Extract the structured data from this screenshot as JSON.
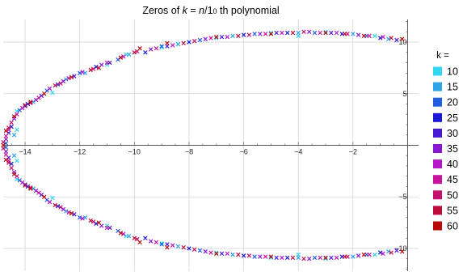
{
  "chart_data": {
    "type": "scatter",
    "marker": "x",
    "title": {
      "prefix": "Zeros of ",
      "var": "k",
      "mid": " = ",
      "num": "n",
      "slash": "/1",
      "sub": "0",
      "suffix": " th polynomial"
    },
    "grid": true,
    "xlim": [
      -14.8,
      0.4
    ],
    "ylim": [
      -12.2,
      12.2
    ],
    "x_ticks": [
      -14,
      -12,
      -10,
      -8,
      -6,
      -4,
      -2
    ],
    "x_tick_labels": [
      "−14",
      "−12",
      "−10",
      "−8",
      "−6",
      "−4",
      "−2"
    ],
    "y_ticks": [
      -10,
      -5,
      5,
      10
    ],
    "y_tick_labels": [
      "−10",
      "−5",
      "5",
      "10"
    ],
    "legend": {
      "title": "k =",
      "placement": "right",
      "entries": [
        {
          "label": "10",
          "color": "#33d6f0"
        },
        {
          "label": "15",
          "color": "#2fa3e8"
        },
        {
          "label": "20",
          "color": "#1f5fe0"
        },
        {
          "label": "25",
          "color": "#1a1ad6"
        },
        {
          "label": "30",
          "color": "#4a19d4"
        },
        {
          "label": "35",
          "color": "#8a18d2"
        },
        {
          "label": "40",
          "color": "#b716c8"
        },
        {
          "label": "45",
          "color": "#c714a0"
        },
        {
          "label": "50",
          "color": "#c4106e"
        },
        {
          "label": "55",
          "color": "#bd0c3c"
        },
        {
          "label": "60",
          "color": "#b80808"
        }
      ]
    },
    "series": [
      {
        "name": "10",
        "points": [
          [
            -13.0,
            5.1
          ],
          [
            -13.0,
            -5.1
          ],
          [
            -11.0,
            7.8
          ],
          [
            -11.0,
            -7.8
          ],
          [
            -9.0,
            9.5
          ],
          [
            -9.0,
            -9.5
          ],
          [
            -7.0,
            10.4
          ],
          [
            -7.0,
            -10.4
          ],
          [
            -5.0,
            10.9
          ],
          [
            -5.0,
            -10.9
          ],
          [
            -3.0,
            11.0
          ],
          [
            -3.0,
            -11.0
          ],
          [
            -1.2,
            10.6
          ],
          [
            -1.2,
            -10.6
          ],
          [
            -14.3,
            1.5
          ],
          [
            -14.3,
            -1.5
          ],
          [
            -14.3,
            3.3
          ],
          [
            -14.3,
            -3.3
          ],
          [
            -10.3,
            8.8
          ],
          [
            -10.3,
            -8.8
          ],
          [
            -4.0,
            10.6
          ],
          [
            -4.0,
            -10.6
          ]
        ]
      },
      {
        "name": "15",
        "points": [
          [
            -14.4,
            1.0
          ],
          [
            -14.4,
            -1.0
          ],
          [
            -13.7,
            4.2
          ],
          [
            -13.7,
            -4.2
          ],
          [
            -12.5,
            6.4
          ],
          [
            -12.5,
            -6.4
          ],
          [
            -11.8,
            7.0
          ],
          [
            -11.8,
            -7.0
          ],
          [
            -10.2,
            8.8
          ],
          [
            -10.2,
            -8.8
          ],
          [
            -8.4,
            9.8
          ],
          [
            -8.4,
            -9.8
          ],
          [
            -6.4,
            10.6
          ],
          [
            -6.4,
            -10.6
          ],
          [
            -4.0,
            10.9
          ],
          [
            -4.0,
            -10.9
          ],
          [
            -2.0,
            10.8
          ],
          [
            -2.0,
            -10.8
          ],
          [
            -0.7,
            10.3
          ],
          [
            -0.7,
            -10.3
          ]
        ]
      },
      {
        "name": "20",
        "points": [
          [
            -14.7,
            0.2
          ],
          [
            -14.7,
            -0.2
          ],
          [
            -14.2,
            3.4
          ],
          [
            -14.2,
            -3.4
          ],
          [
            -13.2,
            5.3
          ],
          [
            -13.2,
            -5.3
          ],
          [
            -12.0,
            7.0
          ],
          [
            -12.0,
            -7.0
          ],
          [
            -10.6,
            8.3
          ],
          [
            -10.6,
            -8.3
          ],
          [
            -9.0,
            9.6
          ],
          [
            -9.0,
            -9.6
          ],
          [
            -7.6,
            10.2
          ],
          [
            -7.6,
            -10.2
          ],
          [
            -5.6,
            10.8
          ],
          [
            -5.6,
            -10.8
          ],
          [
            -3.4,
            10.9
          ],
          [
            -3.4,
            -10.9
          ],
          [
            -1.5,
            10.6
          ],
          [
            -1.5,
            -10.6
          ]
        ]
      },
      {
        "name": "25",
        "points": [
          [
            -14.5,
            1.8
          ],
          [
            -14.5,
            -1.8
          ],
          [
            -13.9,
            4.0
          ],
          [
            -13.9,
            -4.0
          ],
          [
            -12.8,
            5.9
          ],
          [
            -12.8,
            -5.9
          ],
          [
            -11.4,
            7.6
          ],
          [
            -11.4,
            -7.6
          ],
          [
            -9.6,
            9.0
          ],
          [
            -9.6,
            -9.0
          ],
          [
            -8.0,
            10.0
          ],
          [
            -8.0,
            -10.0
          ],
          [
            -6.0,
            10.7
          ],
          [
            -6.0,
            -10.7
          ],
          [
            -4.4,
            10.9
          ],
          [
            -4.4,
            -10.9
          ],
          [
            -2.4,
            10.8
          ],
          [
            -2.4,
            -10.8
          ],
          [
            -1.0,
            10.4
          ],
          [
            -1.0,
            -10.4
          ]
        ]
      },
      {
        "name": "30",
        "points": [
          [
            -14.6,
            1.2
          ],
          [
            -14.6,
            -1.2
          ],
          [
            -14.0,
            3.8
          ],
          [
            -14.0,
            -3.8
          ],
          [
            -13.4,
            4.8
          ],
          [
            -13.4,
            -4.8
          ],
          [
            -12.2,
            6.7
          ],
          [
            -12.2,
            -6.7
          ],
          [
            -10.9,
            8.0
          ],
          [
            -10.9,
            -8.0
          ],
          [
            -8.8,
            9.6
          ],
          [
            -8.8,
            -9.6
          ],
          [
            -6.8,
            10.5
          ],
          [
            -6.8,
            -10.5
          ],
          [
            -4.8,
            10.9
          ],
          [
            -4.8,
            -10.9
          ],
          [
            -2.8,
            10.9
          ],
          [
            -2.8,
            -10.9
          ],
          [
            -0.4,
            10.2
          ],
          [
            -0.4,
            -10.2
          ]
        ]
      },
      {
        "name": "35",
        "points": [
          [
            -14.7,
            0.6
          ],
          [
            -14.7,
            -0.6
          ],
          [
            -14.4,
            2.6
          ],
          [
            -14.4,
            -2.6
          ],
          [
            -13.6,
            4.4
          ],
          [
            -13.6,
            -4.4
          ],
          [
            -12.6,
            6.2
          ],
          [
            -12.6,
            -6.2
          ],
          [
            -11.2,
            7.8
          ],
          [
            -11.2,
            -7.8
          ],
          [
            -9.4,
            9.3
          ],
          [
            -9.4,
            -9.3
          ],
          [
            -7.4,
            10.3
          ],
          [
            -7.4,
            -10.3
          ],
          [
            -5.4,
            10.8
          ],
          [
            -5.4,
            -10.8
          ],
          [
            -3.6,
            11.0
          ],
          [
            -3.6,
            -11.0
          ],
          [
            -1.8,
            10.7
          ],
          [
            -1.8,
            -10.7
          ]
        ]
      },
      {
        "name": "40",
        "points": [
          [
            -14.6,
            1.5
          ],
          [
            -14.6,
            -1.5
          ],
          [
            -14.1,
            3.6
          ],
          [
            -14.1,
            -3.6
          ],
          [
            -13.1,
            5.5
          ],
          [
            -13.1,
            -5.5
          ],
          [
            -11.9,
            7.1
          ],
          [
            -11.9,
            -7.1
          ],
          [
            -10.4,
            8.6
          ],
          [
            -10.4,
            -8.6
          ],
          [
            -8.6,
            9.7
          ],
          [
            -8.6,
            -9.7
          ],
          [
            -6.6,
            10.5
          ],
          [
            -6.6,
            -10.5
          ],
          [
            -4.6,
            10.9
          ],
          [
            -4.6,
            -10.9
          ],
          [
            -2.6,
            10.9
          ],
          [
            -2.6,
            -10.9
          ],
          [
            -0.9,
            10.5
          ],
          [
            -0.9,
            -10.5
          ]
        ]
      },
      {
        "name": "45",
        "points": [
          [
            -14.7,
            0.9
          ],
          [
            -14.7,
            -0.9
          ],
          [
            -14.3,
            3.0
          ],
          [
            -14.3,
            -3.0
          ],
          [
            -13.5,
            4.6
          ],
          [
            -13.5,
            -4.6
          ],
          [
            -12.4,
            6.5
          ],
          [
            -12.4,
            -6.5
          ],
          [
            -11.0,
            8.0
          ],
          [
            -11.0,
            -8.0
          ],
          [
            -9.2,
            9.4
          ],
          [
            -9.2,
            -9.4
          ],
          [
            -7.2,
            10.4
          ],
          [
            -7.2,
            -10.4
          ],
          [
            -5.2,
            10.8
          ],
          [
            -5.2,
            -10.8
          ],
          [
            -3.2,
            10.9
          ],
          [
            -3.2,
            -10.9
          ],
          [
            -1.4,
            10.6
          ],
          [
            -1.4,
            -10.6
          ]
        ]
      },
      {
        "name": "50",
        "points": [
          [
            -14.8,
            0.3
          ],
          [
            -14.8,
            -0.3
          ],
          [
            -14.5,
            2.2
          ],
          [
            -14.5,
            -2.2
          ],
          [
            -13.8,
            4.1
          ],
          [
            -13.8,
            -4.1
          ],
          [
            -12.7,
            6.0
          ],
          [
            -12.7,
            -6.0
          ],
          [
            -11.5,
            7.4
          ],
          [
            -11.5,
            -7.4
          ],
          [
            -9.9,
            9.1
          ],
          [
            -9.9,
            -9.1
          ],
          [
            -7.8,
            10.1
          ],
          [
            -7.8,
            -10.1
          ],
          [
            -5.8,
            10.7
          ],
          [
            -5.8,
            -10.7
          ],
          [
            -3.8,
            11.0
          ],
          [
            -3.8,
            -11.0
          ],
          [
            -2.2,
            10.8
          ],
          [
            -2.2,
            -10.8
          ]
        ]
      },
      {
        "name": "55",
        "points": [
          [
            -14.6,
            1.7
          ],
          [
            -14.6,
            -1.7
          ],
          [
            -14.0,
            3.9
          ],
          [
            -14.0,
            -3.9
          ],
          [
            -12.9,
            5.8
          ],
          [
            -12.9,
            -5.8
          ],
          [
            -11.6,
            7.3
          ],
          [
            -11.6,
            -7.3
          ],
          [
            -10.0,
            9.0
          ],
          [
            -10.0,
            -9.0
          ],
          [
            -8.2,
            9.9
          ],
          [
            -8.2,
            -9.9
          ],
          [
            -6.2,
            10.6
          ],
          [
            -6.2,
            -10.6
          ],
          [
            -4.2,
            10.9
          ],
          [
            -4.2,
            -10.9
          ],
          [
            -2.3,
            10.8
          ],
          [
            -2.3,
            -10.8
          ],
          [
            -0.6,
            10.4
          ],
          [
            -0.6,
            -10.4
          ]
        ]
      },
      {
        "name": "60",
        "points": [
          [
            -14.8,
            0.0
          ],
          [
            -14.7,
            1.4
          ],
          [
            -14.7,
            -1.4
          ],
          [
            -14.4,
            2.8
          ],
          [
            -14.4,
            -2.8
          ],
          [
            -13.8,
            4.2
          ],
          [
            -13.8,
            -4.2
          ],
          [
            -13.3,
            5.0
          ],
          [
            -13.3,
            -5.0
          ],
          [
            -12.3,
            6.6
          ],
          [
            -12.3,
            -6.6
          ],
          [
            -11.3,
            7.5
          ],
          [
            -11.3,
            -7.5
          ],
          [
            -10.5,
            8.5
          ],
          [
            -10.5,
            -8.5
          ],
          [
            -9.8,
            9.4
          ],
          [
            -9.8,
            -9.4
          ],
          [
            -8.8,
            9.9
          ],
          [
            -8.8,
            -9.9
          ],
          [
            -7.0,
            10.5
          ],
          [
            -7.0,
            -10.5
          ],
          [
            -5.0,
            10.8
          ],
          [
            -5.0,
            -10.8
          ],
          [
            -3.0,
            10.9
          ],
          [
            -3.0,
            -10.9
          ],
          [
            -1.6,
            10.6
          ],
          [
            -1.6,
            -10.6
          ],
          [
            -0.2,
            10.3
          ],
          [
            -0.2,
            -10.3
          ]
        ]
      }
    ]
  }
}
